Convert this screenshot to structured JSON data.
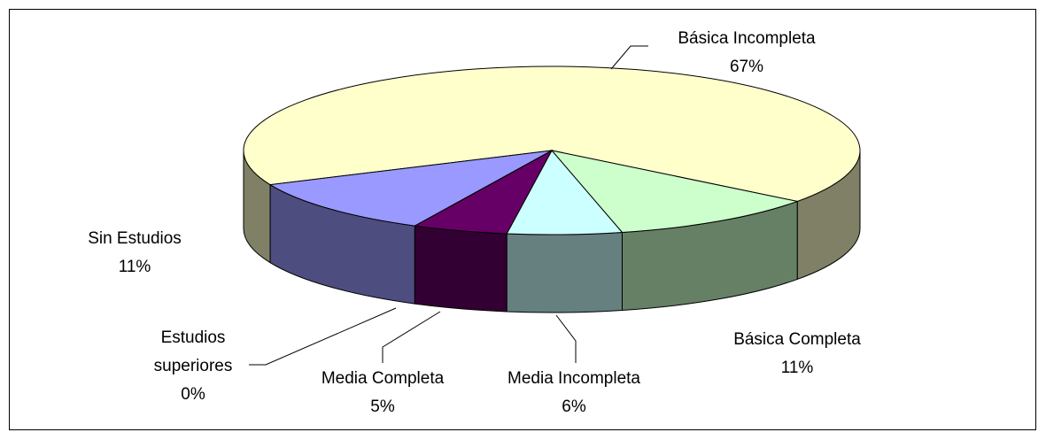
{
  "chart_data": {
    "type": "pie",
    "categories": [
      "Básica Incompleta",
      "Básica Completa",
      "Media Incompleta",
      "Media Completa",
      "Estudios superiores",
      "Sin Estudios"
    ],
    "values": [
      67,
      11,
      6,
      5,
      0,
      11
    ],
    "value_labels": [
      "67%",
      "11%",
      "6%",
      "5%",
      "0%",
      "11%"
    ],
    "colors": [
      "#ffffcc",
      "#ccffcc",
      "#ccffff",
      "#660066",
      "#ff8080",
      "#9999ff"
    ]
  }
}
